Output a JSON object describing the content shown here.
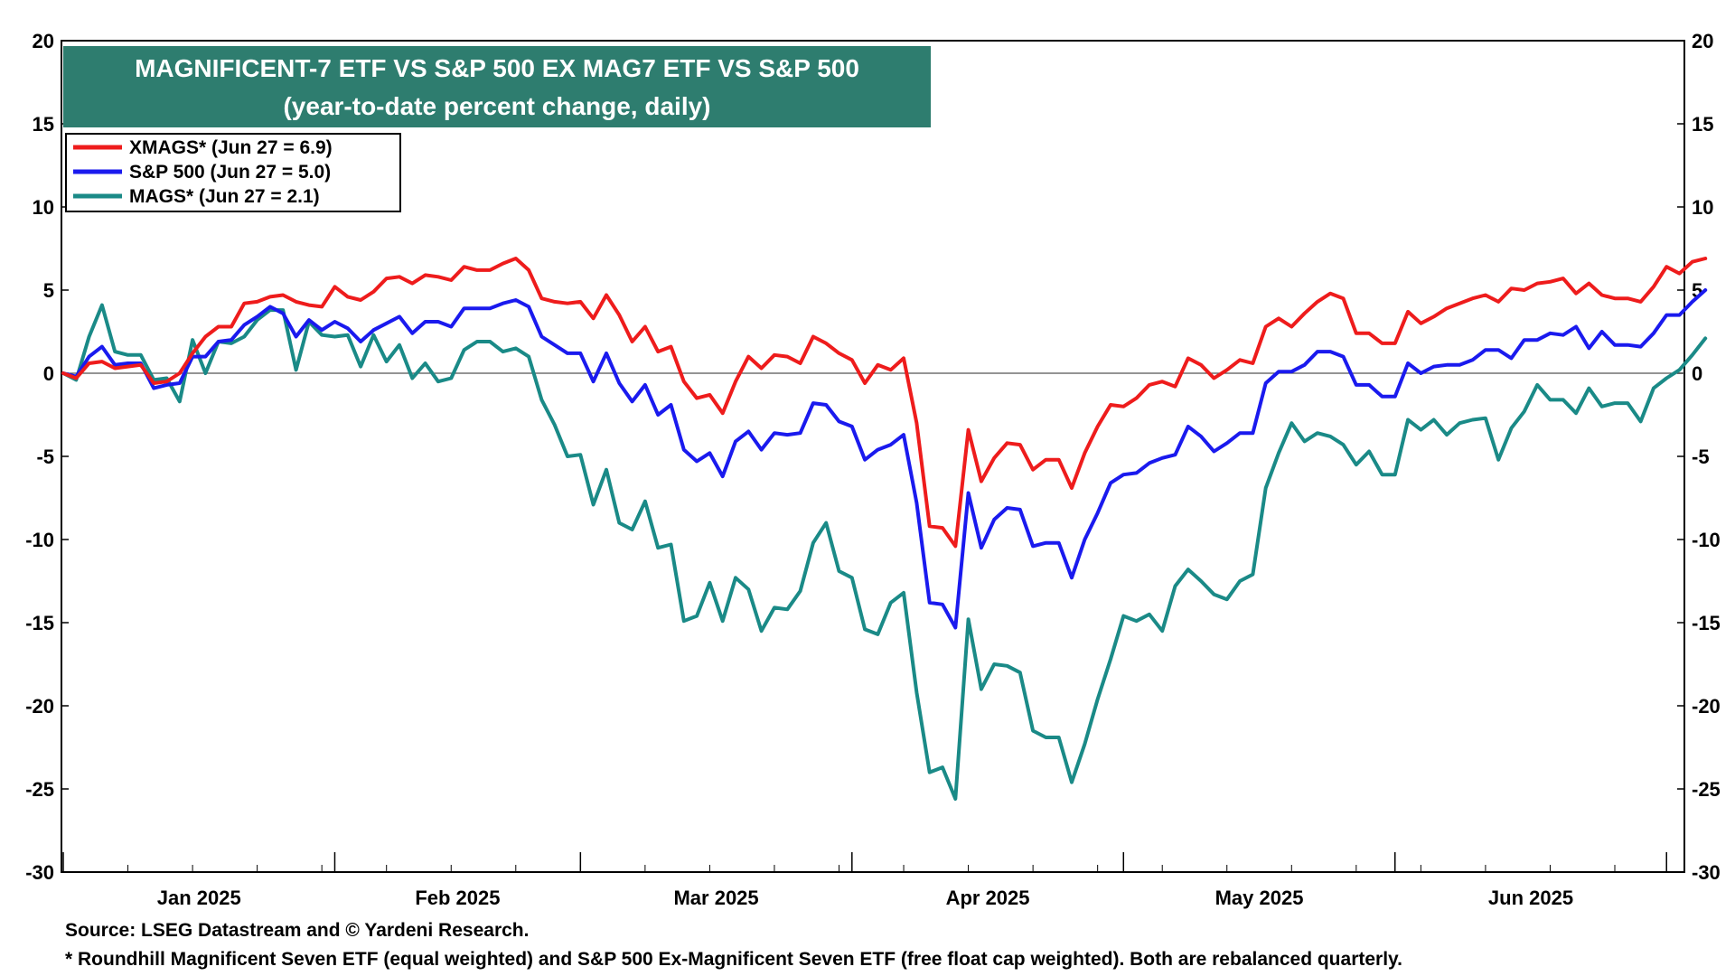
{
  "chart_data": {
    "type": "line",
    "title": "MAGNIFICENT-7 ETF VS S&P 500 EX MAG7 ETF VS S&P 500",
    "subtitle": "(year-to-date percent change, daily)",
    "ylim": [
      -30,
      20
    ],
    "yticks": [
      20,
      15,
      10,
      5,
      0,
      -5,
      -10,
      -15,
      -20,
      -25,
      -30
    ],
    "months": [
      "Jan 2025",
      "Feb 2025",
      "Mar 2025",
      "Apr 2025",
      "May 2025",
      "Jun 2025"
    ],
    "grid": false,
    "zero_line": true,
    "legend_position": "top-left",
    "n_points": 121,
    "series": [
      {
        "name": "XMAGS* (Jun 27 = 6.9)",
        "color": "#ee1c1c",
        "values": [
          0,
          -0.3,
          0.6,
          0.7,
          0.3,
          0.4,
          0.5,
          -0.6,
          -0.5,
          0,
          1.2,
          2.2,
          2.8,
          2.8,
          4.2,
          4.3,
          4.6,
          4.7,
          4.3,
          4.1,
          4.0,
          5.2,
          4.6,
          4.4,
          4.9,
          5.7,
          5.8,
          5.4,
          5.9,
          5.8,
          5.6,
          6.4,
          6.2,
          6.2,
          6.6,
          6.9,
          6.2,
          4.5,
          4.3,
          4.2,
          4.3,
          3.3,
          4.7,
          3.5,
          1.9,
          2.8,
          1.3,
          1.6,
          -0.5,
          -1.5,
          -1.3,
          -2.4,
          -0.5,
          1.0,
          0.3,
          1.1,
          1.0,
          0.6,
          2.2,
          1.8,
          1.2,
          0.8,
          -0.6,
          0.5,
          0.2,
          0.9,
          -3.0,
          -9.2,
          -9.3,
          -10.4,
          -3.4,
          -6.5,
          -5.1,
          -4.2,
          -4.3,
          -5.8,
          -5.2,
          -5.2,
          -6.9,
          -4.8,
          -3.2,
          -1.9,
          -2.0,
          -1.5,
          -0.7,
          -0.5,
          -0.8,
          0.9,
          0.5,
          -0.3,
          0.2,
          0.8,
          0.6,
          2.8,
          3.3,
          2.8,
          3.6,
          4.3,
          4.8,
          4.5,
          2.4,
          2.4,
          1.8,
          1.8,
          3.7,
          3.0,
          3.4,
          3.9,
          4.2,
          4.5,
          4.7,
          4.3,
          5.1,
          5.0,
          5.4,
          5.5,
          5.7,
          4.8,
          5.4,
          4.7,
          4.5,
          4.5,
          4.3,
          5.2,
          6.4,
          6.0,
          6.7,
          6.9
        ]
      },
      {
        "name": "S&P 500 (Jun 27 = 5.0)",
        "color": "#1a1aee",
        "values": [
          0,
          -0.2,
          1.0,
          1.6,
          0.5,
          0.6,
          0.6,
          -0.9,
          -0.7,
          -0.6,
          1.0,
          1.0,
          1.9,
          2.0,
          2.9,
          3.4,
          4.0,
          3.6,
          2.2,
          3.2,
          2.6,
          3.1,
          2.7,
          1.9,
          2.6,
          3.0,
          3.4,
          2.4,
          3.1,
          3.1,
          2.8,
          3.9,
          3.9,
          3.9,
          4.2,
          4.4,
          4.0,
          2.2,
          1.7,
          1.2,
          1.2,
          -0.5,
          1.2,
          -0.6,
          -1.7,
          -0.7,
          -2.5,
          -1.9,
          -4.6,
          -5.3,
          -4.8,
          -6.2,
          -4.1,
          -3.5,
          -4.6,
          -3.6,
          -3.7,
          -3.6,
          -1.8,
          -1.9,
          -2.9,
          -3.2,
          -5.2,
          -4.6,
          -4.3,
          -3.7,
          -7.8,
          -13.8,
          -13.9,
          -15.3,
          -7.2,
          -10.5,
          -8.8,
          -8.1,
          -8.2,
          -10.4,
          -10.2,
          -10.2,
          -12.3,
          -10.0,
          -8.4,
          -6.6,
          -6.1,
          -6.0,
          -5.4,
          -5.1,
          -4.9,
          -3.2,
          -3.8,
          -4.7,
          -4.2,
          -3.6,
          -3.6,
          -0.6,
          0.1,
          0.1,
          0.5,
          1.3,
          1.3,
          1.0,
          -0.7,
          -0.7,
          -1.4,
          -1.4,
          0.6,
          0.0,
          0.4,
          0.5,
          0.5,
          0.8,
          1.4,
          1.4,
          0.9,
          2.0,
          2.0,
          2.4,
          2.3,
          2.8,
          1.5,
          2.5,
          1.7,
          1.7,
          1.6,
          2.4,
          3.5,
          3.5,
          4.3,
          5.0
        ]
      },
      {
        "name": "MAGS* (Jun 27 = 2.1)",
        "color": "#1a8a87",
        "values": [
          0,
          -0.4,
          2.2,
          4.1,
          1.3,
          1.1,
          1.1,
          -0.4,
          -0.3,
          -1.7,
          2.0,
          0.0,
          1.9,
          1.8,
          2.2,
          3.2,
          3.8,
          3.8,
          0.2,
          3.1,
          2.3,
          2.2,
          2.3,
          0.4,
          2.3,
          0.7,
          1.7,
          -0.3,
          0.6,
          -0.5,
          -0.3,
          1.4,
          1.9,
          1.9,
          1.3,
          1.5,
          1.0,
          -1.6,
          -3.1,
          -5.0,
          -4.9,
          -7.9,
          -5.8,
          -9.0,
          -9.4,
          -7.7,
          -10.5,
          -10.3,
          -14.9,
          -14.6,
          -12.6,
          -14.9,
          -12.3,
          -13.0,
          -15.5,
          -14.1,
          -14.2,
          -13.1,
          -10.2,
          -9.0,
          -11.9,
          -12.3,
          -15.4,
          -15.7,
          -13.8,
          -13.2,
          -19.2,
          -24.0,
          -23.7,
          -25.6,
          -14.8,
          -19.0,
          -17.5,
          -17.6,
          -18.0,
          -21.5,
          -21.9,
          -21.9,
          -24.6,
          -22.3,
          -19.6,
          -17.2,
          -14.6,
          -14.9,
          -14.5,
          -15.5,
          -12.8,
          -11.8,
          -12.5,
          -13.3,
          -13.6,
          -12.5,
          -12.1,
          -6.9,
          -4.8,
          -3.0,
          -4.1,
          -3.6,
          -3.8,
          -4.3,
          -5.5,
          -4.7,
          -6.1,
          -6.1,
          -2.8,
          -3.4,
          -2.8,
          -3.7,
          -3.0,
          -2.8,
          -2.7,
          -5.2,
          -3.3,
          -2.3,
          -0.7,
          -1.6,
          -1.6,
          -2.4,
          -0.9,
          -2.0,
          -1.8,
          -1.8,
          -2.9,
          -0.9,
          -0.3,
          0.2,
          1.1,
          2.1
        ]
      }
    ]
  },
  "footer": {
    "source": "Source: LSEG Datastream and © Yardeni Research.",
    "note": "* Roundhill Magnificent Seven ETF (equal weighted) and S&P 500 Ex-Magnificent Seven ETF (free float cap weighted). Both are rebalanced quarterly."
  }
}
